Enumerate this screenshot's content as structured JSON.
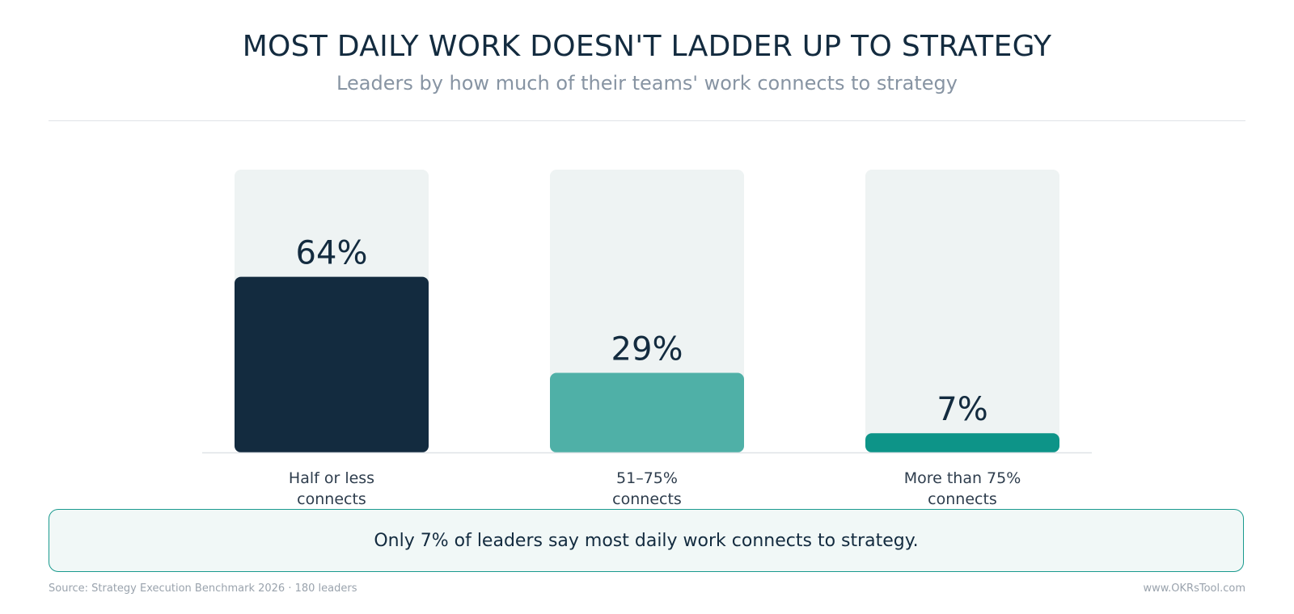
{
  "title": "MOST DAILY WORK DOESN'T LADDER UP TO STRATEGY",
  "subtitle": "Leaders by how much of their teams' work connects to strategy",
  "callout": "Only 7% of leaders say most daily work connects to strategy.",
  "source": "Source: Strategy Execution Benchmark 2026 · 180 leaders",
  "site": "www.OKRsTool.com",
  "colors": {
    "track": "#eef3f3",
    "bar_colors": [
      "#132b3f",
      "#4fb0a7",
      "#0d9488"
    ],
    "value_text": "#132b3f",
    "category_text": "#2e3d4d",
    "baseline": "#dfe3e7"
  },
  "chart_data": {
    "type": "bar",
    "categories": [
      [
        "Half or less",
        "connects"
      ],
      [
        "51–75%",
        "connects"
      ],
      [
        "More than 75%",
        "connects"
      ]
    ],
    "values": [
      64,
      29,
      7
    ],
    "value_labels": [
      "64%",
      "29%",
      "7%"
    ],
    "ylim": [
      0,
      85
    ],
    "grid": false,
    "legend": "none"
  }
}
